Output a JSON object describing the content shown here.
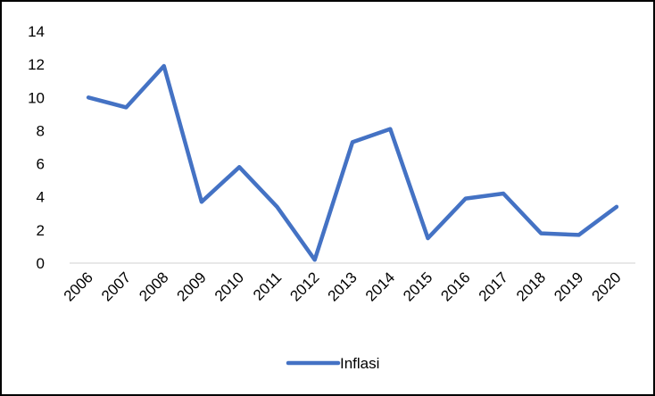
{
  "chart_data": {
    "type": "line",
    "title": "",
    "xlabel": "",
    "ylabel": "",
    "categories": [
      "2006",
      "2007",
      "2008",
      "2009",
      "2010",
      "2011",
      "2012",
      "2013",
      "2014",
      "2015",
      "2016",
      "2017",
      "2018",
      "2019",
      "2020"
    ],
    "series": [
      {
        "name": "Inflasi",
        "color": "#4472C4",
        "values": [
          10.0,
          9.4,
          11.9,
          3.7,
          5.8,
          3.4,
          0.2,
          7.3,
          8.1,
          1.5,
          3.9,
          4.2,
          1.8,
          1.7,
          3.4
        ]
      }
    ],
    "ylim": [
      0,
      14
    ],
    "yticks": [
      "0",
      "2",
      "4",
      "6",
      "8",
      "10",
      "12",
      "14"
    ],
    "grid": false,
    "legend": "bottom"
  }
}
